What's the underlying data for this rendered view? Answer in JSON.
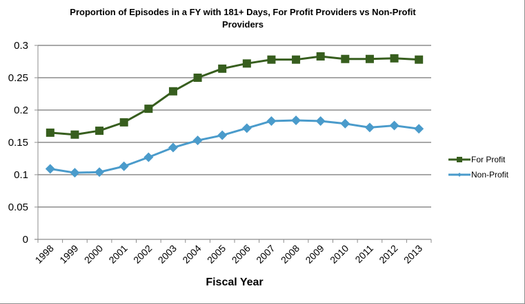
{
  "chart_data": {
    "type": "line",
    "title": "Proportion of Episodes in a FY with 181+ Days, For Profit Providers vs Non-Profit Providers",
    "title_lines": [
      "Proportion of Episodes in a FY with 181+ Days, For Profit Providers vs Non-Profit",
      "Providers"
    ],
    "xlabel": "Fiscal Year",
    "ylabel": "",
    "categories": [
      "1998",
      "1999",
      "2000",
      "2001",
      "2002",
      "2003",
      "2004",
      "2005",
      "2006",
      "2007",
      "2008",
      "2009",
      "2010",
      "2011",
      "2012",
      "2013"
    ],
    "ylim": [
      0,
      0.3
    ],
    "yticks": [
      0,
      0.05,
      0.1,
      0.15,
      0.2,
      0.25,
      0.3
    ],
    "ytick_labels": [
      "0",
      "0.05",
      "0.1",
      "0.15",
      "0.2",
      "0.25",
      "0.3"
    ],
    "grid": true,
    "legend_position": "right",
    "series": [
      {
        "name": "For Profit",
        "color": "#375E1E",
        "marker": "square",
        "values": [
          0.165,
          0.162,
          0.168,
          0.181,
          0.202,
          0.229,
          0.25,
          0.264,
          0.272,
          0.278,
          0.278,
          0.283,
          0.279,
          0.279,
          0.28,
          0.278
        ]
      },
      {
        "name": "Non-Profit",
        "color": "#4A9BCB",
        "marker": "diamond",
        "values": [
          0.109,
          0.103,
          0.104,
          0.113,
          0.127,
          0.142,
          0.153,
          0.161,
          0.172,
          0.183,
          0.184,
          0.183,
          0.179,
          0.173,
          0.176,
          0.171
        ]
      }
    ]
  },
  "colors": {
    "gridline": "#8c8c8c",
    "axis": "#8c8c8c",
    "text": "#000000",
    "background": "#ffffff"
  }
}
